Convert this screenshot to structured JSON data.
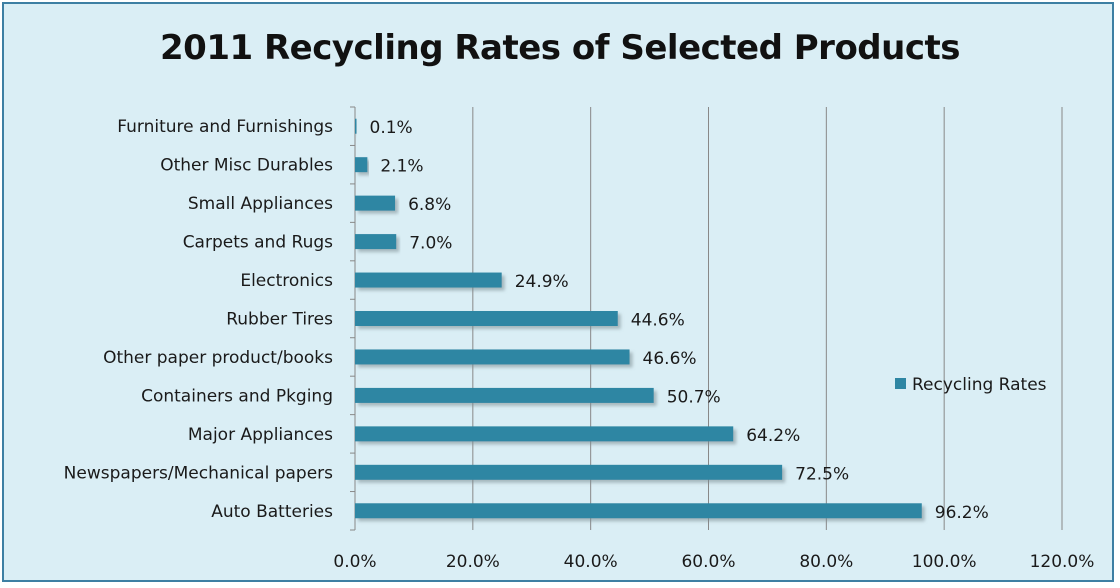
{
  "chart_data": {
    "type": "bar",
    "orientation": "horizontal",
    "title": "2011 Recycling Rates of Selected Products",
    "categories": [
      "Auto Batteries",
      "Newspapers/Mechanical papers",
      "Major Appliances",
      "Containers and Pkging",
      "Other paper product/books",
      "Rubber Tires",
      "Electronics",
      "Carpets and Rugs",
      "Small Appliances",
      "Other Misc Durables",
      "Furniture and Furnishings"
    ],
    "series": [
      {
        "name": "Recycling Rates",
        "values": [
          96.2,
          72.5,
          64.2,
          50.7,
          46.6,
          44.6,
          24.9,
          7.0,
          6.8,
          2.1,
          0.1
        ],
        "labels": [
          "96.2%",
          "72.5%",
          "64.2%",
          "50.7%",
          "46.6%",
          "44.6%",
          "24.9%",
          "7.0%",
          "6.8%",
          "2.1%",
          "0.1%"
        ]
      }
    ],
    "xlim": [
      0,
      120
    ],
    "xticks": [
      0,
      20,
      40,
      60,
      80,
      100,
      120
    ],
    "xtick_labels": [
      "0.0%",
      "20.0%",
      "40.0%",
      "60.0%",
      "80.0%",
      "100.0%",
      "120.0%"
    ],
    "grid": true,
    "legend": "right",
    "colors": {
      "bar": "#2e86a3",
      "background": "#daeef5",
      "border": "#3d7fa3",
      "grid": "#888888"
    }
  }
}
